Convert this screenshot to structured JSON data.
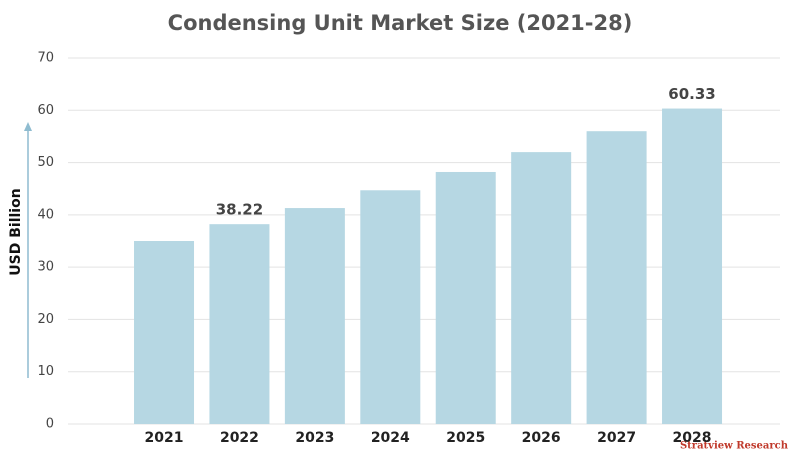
{
  "chart_data": {
    "type": "bar",
    "title": "Condensing Unit Market Size (2021-28)",
    "y_label": "USD Billion",
    "categories": [
      "2021",
      "2022",
      "2023",
      "2024",
      "2025",
      "2026",
      "2027",
      "2028"
    ],
    "values": [
      35.0,
      38.22,
      41.3,
      44.7,
      48.2,
      52.0,
      56.0,
      60.33
    ],
    "data_labels_at": [
      1,
      7
    ],
    "color": "#b6d7e3",
    "ylim": [
      0,
      70
    ],
    "yticks": [
      0,
      10,
      20,
      30,
      40,
      50,
      60,
      70
    ],
    "grid": true,
    "watermark": "Stratview Research"
  }
}
